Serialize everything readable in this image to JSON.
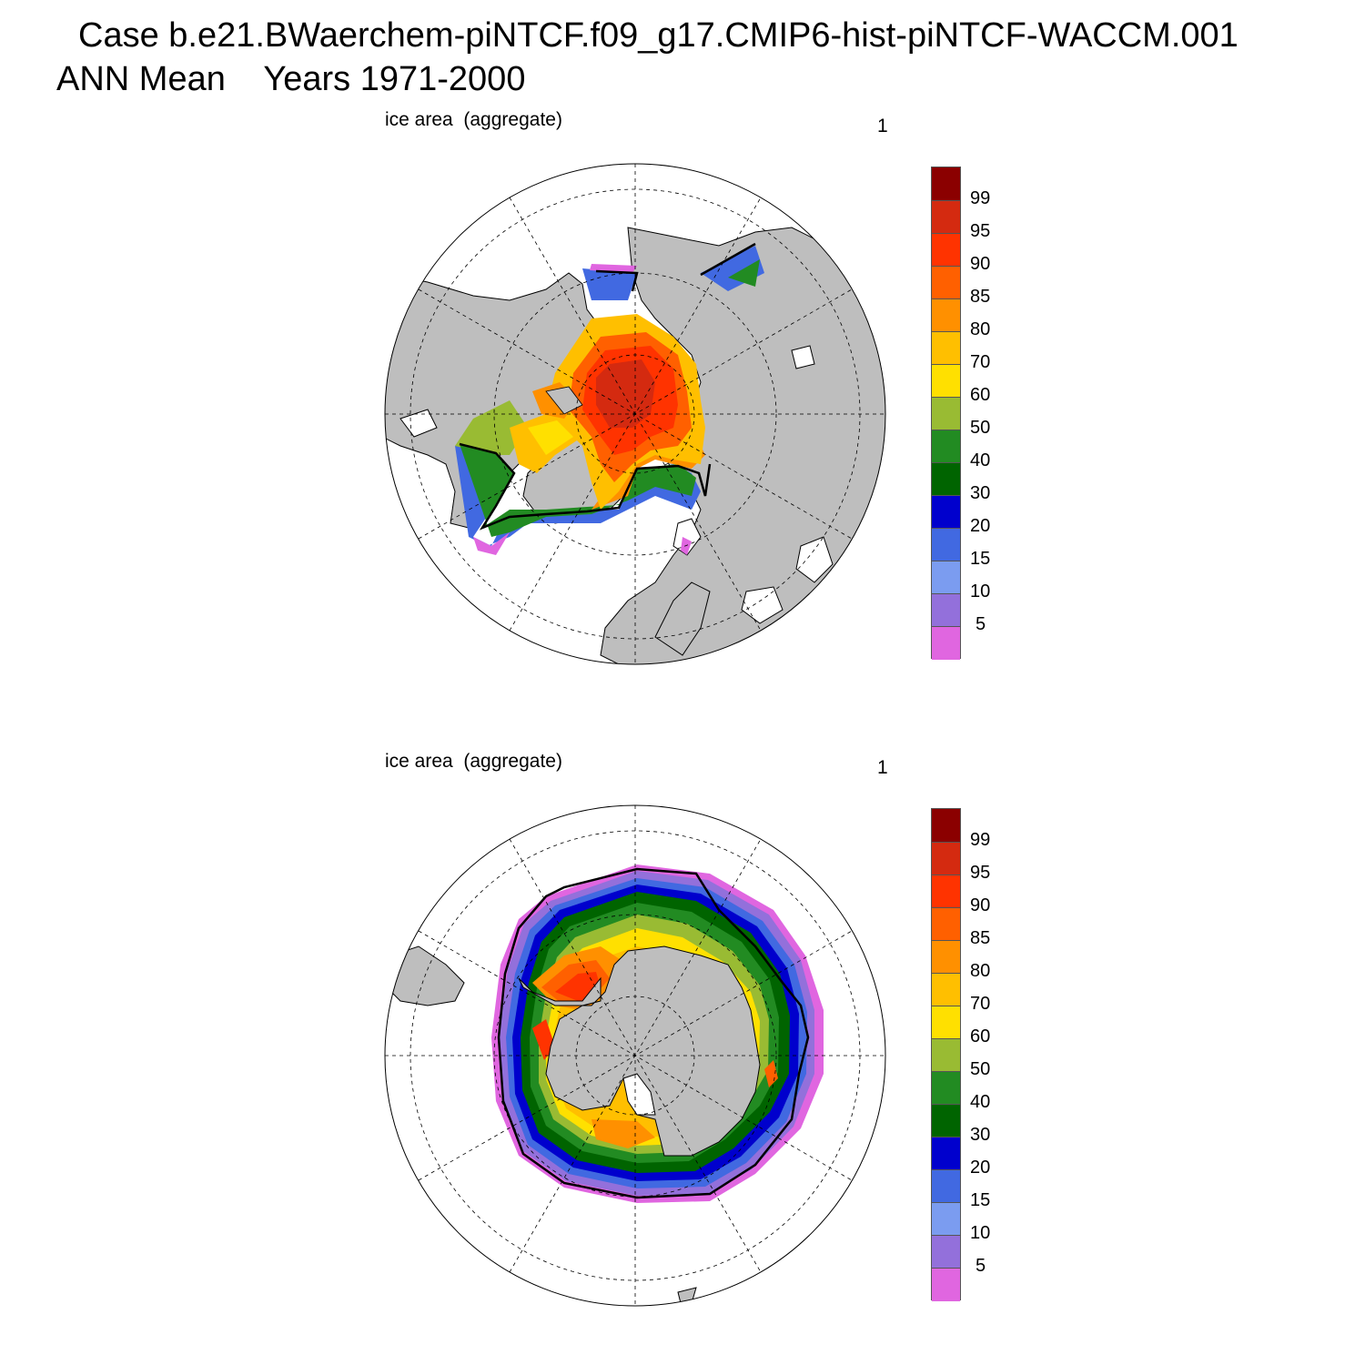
{
  "title": {
    "line1": "Case b.e21.BWaerchem-piNTCF.f09_g17.CMIP6-hist-piNTCF-WACCM.001",
    "line2": "ANN Mean    Years 1971-2000"
  },
  "panels": [
    {
      "label": "ice area  (aggregate)",
      "number": "1",
      "hemisphere": "north"
    },
    {
      "label": "ice area  (aggregate)",
      "number": "1",
      "hemisphere": "south"
    }
  ],
  "colorbar": {
    "labels": [
      "99",
      "95",
      "90",
      "85",
      "80",
      "70",
      "60",
      "50",
      "40",
      "30",
      "20",
      "15",
      "10",
      "5"
    ],
    "colors": [
      "#8b0000",
      "#d42a10",
      "#ff3300",
      "#ff6000",
      "#ff9000",
      "#ffbf00",
      "#ffe000",
      "#99bb33",
      "#228b22",
      "#006400",
      "#0000cd",
      "#4169e1",
      "#7b9cf0",
      "#9370db",
      "#e066e0"
    ]
  },
  "colors": {
    "land": "#bebebe",
    "ocean": "#ffffff",
    "contour": "#000000"
  }
}
